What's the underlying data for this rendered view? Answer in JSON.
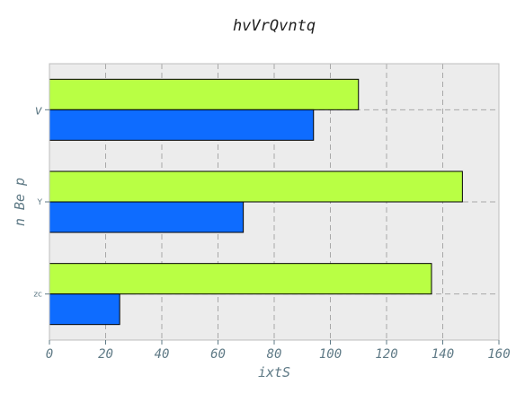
{
  "chart_data": {
    "type": "bar",
    "orientation": "horizontal",
    "title": "hvVrQvntq",
    "xlabel": "ixtS",
    "ylabel": "n Be p",
    "categories": [
      "v",
      "Y",
      "zc"
    ],
    "series": [
      {
        "color": "#b9ff44",
        "values": [
          110,
          147,
          136
        ]
      },
      {
        "color": "#0e6cff",
        "values": [
          94,
          69,
          25
        ]
      }
    ],
    "xlim": [
      0,
      160
    ],
    "xticks": [
      0,
      20,
      40,
      60,
      80,
      100,
      120,
      140,
      160
    ],
    "grid": true,
    "plot_background": "#ececec",
    "grid_color": "#a8a8a8"
  }
}
